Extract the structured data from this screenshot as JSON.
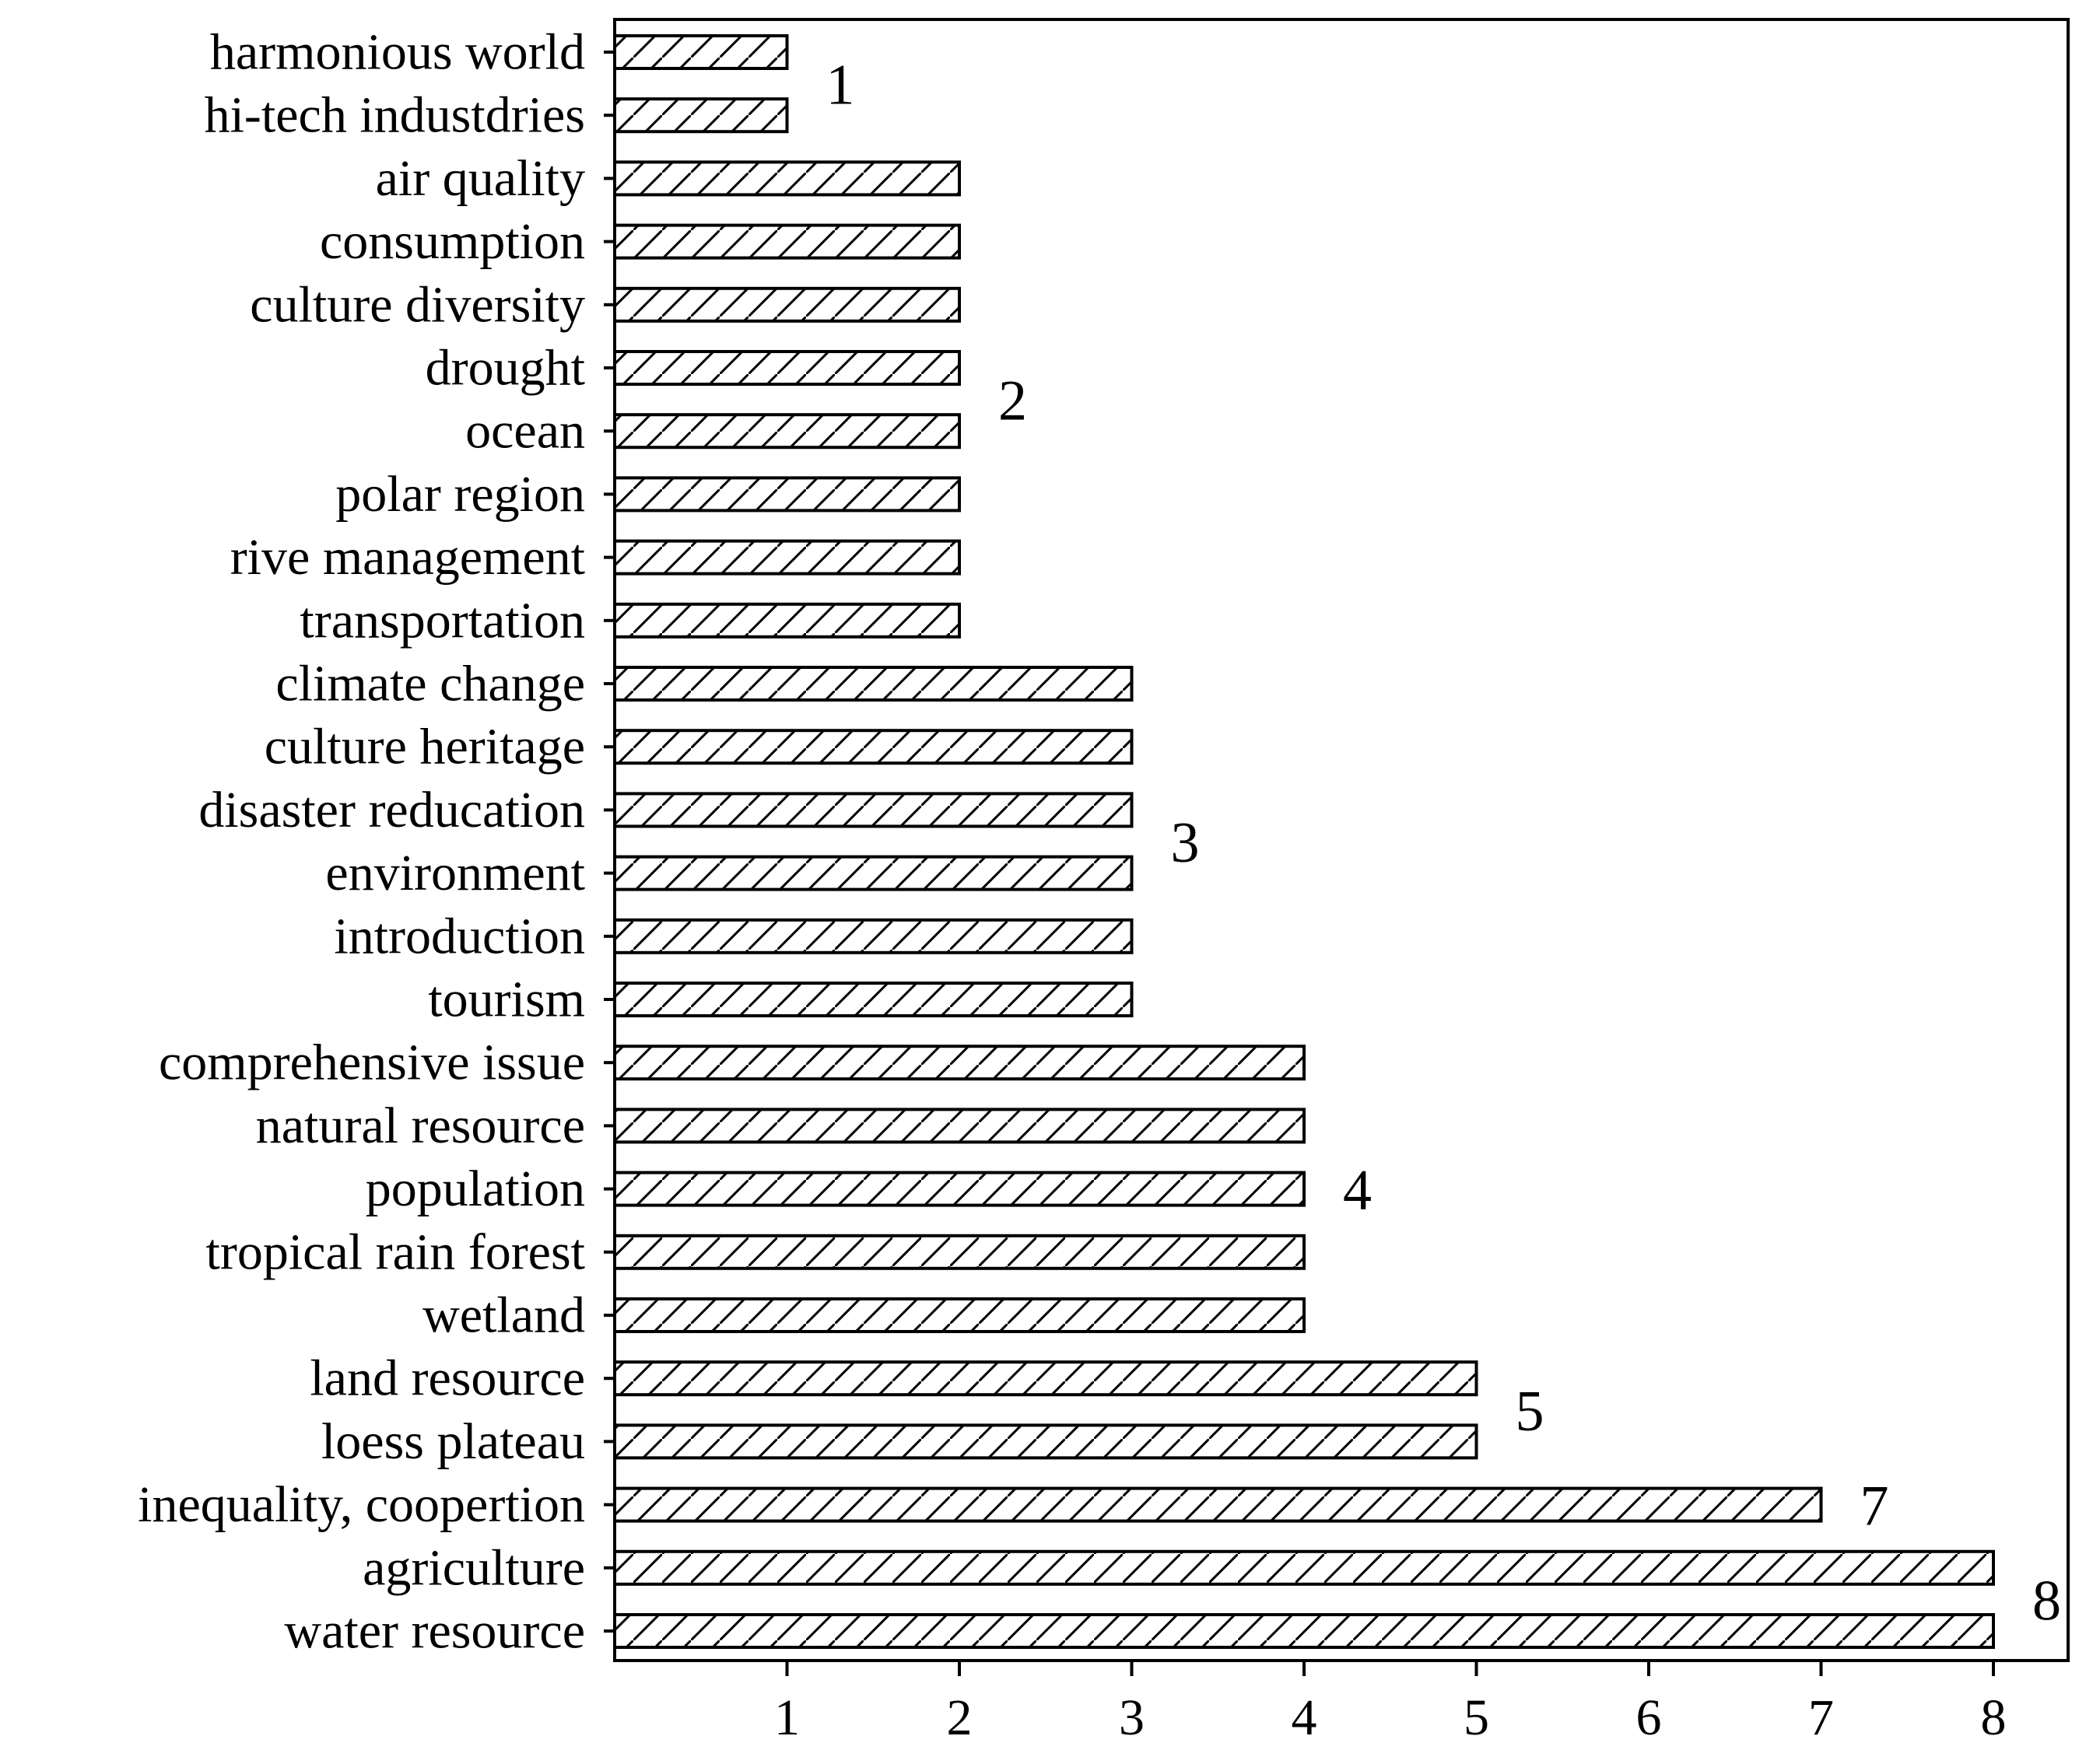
{
  "chart_data": {
    "type": "bar",
    "orientation": "horizontal",
    "categories": [
      "harmonious world",
      "hi-tech industdries",
      "air quality",
      "consumption",
      "culture diversity",
      "drought",
      "ocean",
      "polar region",
      "rive management",
      "transportation",
      "climate change",
      "culture heritage",
      "disaster reducation",
      "environment",
      "introduction",
      "tourism",
      "comprehensive issue",
      "natural resource",
      "population",
      "tropical rain forest",
      "wetland",
      "land resource",
      "loess plateau",
      "inequality, coopertion",
      "agriculture",
      "water resource"
    ],
    "values": [
      1,
      1,
      2,
      2,
      2,
      2,
      2,
      2,
      2,
      2,
      3,
      3,
      3,
      3,
      3,
      3,
      4,
      4,
      4,
      4,
      4,
      5,
      5,
      7,
      8,
      8
    ],
    "xticks": [
      "1",
      "2",
      "3",
      "4",
      "5",
      "6",
      "7",
      "8"
    ],
    "xlim": [
      0,
      8.3
    ],
    "group_labels": [
      {
        "text": "1",
        "value": 1,
        "from": 0,
        "to": 1
      },
      {
        "text": "2",
        "value": 2,
        "from": 2,
        "to": 9
      },
      {
        "text": "3",
        "value": 3,
        "from": 10,
        "to": 15
      },
      {
        "text": "4",
        "value": 4,
        "from": 16,
        "to": 20
      },
      {
        "text": "5",
        "value": 5,
        "from": 21,
        "to": 22
      },
      {
        "text": "7",
        "value": 7,
        "from": 23,
        "to": 23
      },
      {
        "text": "8",
        "value": 8,
        "from": 24,
        "to": 25
      }
    ],
    "bar_fill": "hatched",
    "grid": false,
    "legend": "none",
    "colors": {
      "bar_stroke": "#000000",
      "hatch": "#000000",
      "background": "#ffffff"
    }
  }
}
